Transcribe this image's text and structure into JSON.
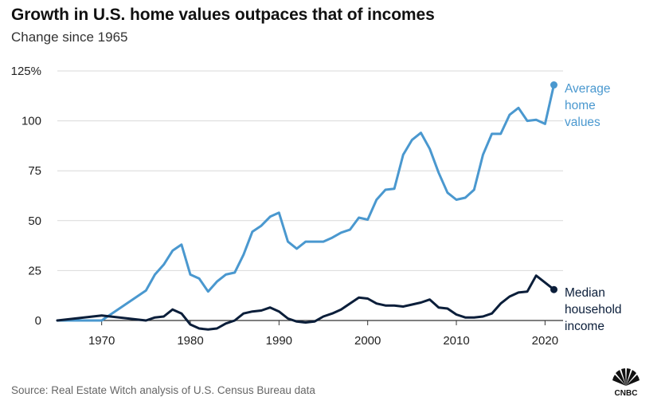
{
  "header": {
    "title": "Growth in U.S. home values outpaces that of incomes",
    "subtitle": "Change since 1965"
  },
  "footer": {
    "source": "Source: Real Estate Witch analysis of U.S. Census Bureau data",
    "logo_text": "CNBC"
  },
  "colors": {
    "home_values": "#4a98cf",
    "household_income": "#0b1e3a",
    "grid": "#d9d9d9",
    "axis": "#333333"
  },
  "chart_data": {
    "type": "line",
    "title": "Growth in U.S. home values outpaces that of incomes",
    "subtitle": "Change since 1965",
    "xlabel": "",
    "ylabel": "",
    "xlim": [
      1965,
      2021
    ],
    "ylim": [
      0,
      125
    ],
    "x_ticks": [
      1970,
      1980,
      1990,
      2000,
      2010,
      2020
    ],
    "y_ticks": [
      0,
      25,
      50,
      75,
      100,
      125
    ],
    "y_tick_labels": [
      "0",
      "25",
      "50",
      "75",
      "100",
      "125%"
    ],
    "grid": "horizontal",
    "legend": "direct labels at line ends",
    "series": [
      {
        "name": "Average home values",
        "label_lines": [
          "Average",
          "home",
          "values"
        ],
        "color": "#4a98cf",
        "end_marker": true,
        "points": [
          [
            1965,
            0
          ],
          [
            1970,
            0
          ],
          [
            1975,
            15
          ],
          [
            1976,
            23
          ],
          [
            1977,
            28
          ],
          [
            1978,
            35
          ],
          [
            1979,
            38
          ],
          [
            1980,
            23
          ],
          [
            1981,
            21
          ],
          [
            1982,
            14.5
          ],
          [
            1983,
            19.5
          ],
          [
            1984,
            23
          ],
          [
            1985,
            24
          ],
          [
            1986,
            33
          ],
          [
            1987,
            44.5
          ],
          [
            1988,
            47.5
          ],
          [
            1989,
            52
          ],
          [
            1990,
            54
          ],
          [
            1991,
            39.5
          ],
          [
            1992,
            36
          ],
          [
            1993,
            39.5
          ],
          [
            1994,
            39.5
          ],
          [
            1995,
            39.5
          ],
          [
            1996,
            41.5
          ],
          [
            1997,
            44
          ],
          [
            1998,
            45.5
          ],
          [
            1999,
            51.5
          ],
          [
            2000,
            50.5
          ],
          [
            2001,
            60.5
          ],
          [
            2002,
            65.5
          ],
          [
            2003,
            66
          ],
          [
            2004,
            83
          ],
          [
            2005,
            90.5
          ],
          [
            2006,
            94
          ],
          [
            2007,
            86
          ],
          [
            2008,
            74
          ],
          [
            2009,
            64
          ],
          [
            2010,
            60.5
          ],
          [
            2011,
            61.5
          ],
          [
            2012,
            65.5
          ],
          [
            2013,
            83
          ],
          [
            2014,
            93.5
          ],
          [
            2015,
            93.5
          ],
          [
            2016,
            103
          ],
          [
            2017,
            106.5
          ],
          [
            2018,
            100
          ],
          [
            2019,
            100.5
          ],
          [
            2020,
            98.5
          ],
          [
            2021,
            118
          ]
        ]
      },
      {
        "name": "Median household income",
        "label_lines": [
          "Median",
          "household",
          "income"
        ],
        "color": "#0b1e3a",
        "end_marker": true,
        "points": [
          [
            1965,
            0
          ],
          [
            1970,
            2.5
          ],
          [
            1975,
            0
          ],
          [
            1976,
            1.5
          ],
          [
            1977,
            2
          ],
          [
            1978,
            5.5
          ],
          [
            1979,
            3.5
          ],
          [
            1980,
            -2
          ],
          [
            1981,
            -4
          ],
          [
            1982,
            -4.5
          ],
          [
            1983,
            -4
          ],
          [
            1984,
            -1.5
          ],
          [
            1985,
            0
          ],
          [
            1986,
            3.5
          ],
          [
            1987,
            4.5
          ],
          [
            1988,
            5
          ],
          [
            1989,
            6.5
          ],
          [
            1990,
            4.5
          ],
          [
            1991,
            1
          ],
          [
            1992,
            -0.5
          ],
          [
            1993,
            -1
          ],
          [
            1994,
            -0.5
          ],
          [
            1995,
            2
          ],
          [
            1996,
            3.5
          ],
          [
            1997,
            5.5
          ],
          [
            1998,
            8.5
          ],
          [
            1999,
            11.5
          ],
          [
            2000,
            11
          ],
          [
            2001,
            8.5
          ],
          [
            2002,
            7.5
          ],
          [
            2003,
            7.5
          ],
          [
            2004,
            7
          ],
          [
            2005,
            8
          ],
          [
            2006,
            9
          ],
          [
            2007,
            10.5
          ],
          [
            2008,
            6.5
          ],
          [
            2009,
            6
          ],
          [
            2010,
            3
          ],
          [
            2011,
            1.5
          ],
          [
            2012,
            1.5
          ],
          [
            2013,
            2
          ],
          [
            2014,
            3.5
          ],
          [
            2015,
            8.5
          ],
          [
            2016,
            12
          ],
          [
            2017,
            14
          ],
          [
            2018,
            14.5
          ],
          [
            2019,
            22.5
          ],
          [
            2020,
            19
          ],
          [
            2021,
            15.5
          ]
        ]
      }
    ]
  }
}
